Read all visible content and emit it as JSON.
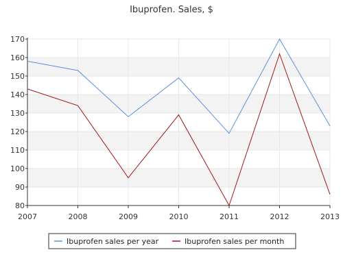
{
  "chart_data": {
    "type": "line",
    "title": "Ibuprofen. Sales, $",
    "x": [
      "2007",
      "2008",
      "2009",
      "2010",
      "2011",
      "2012",
      "2013"
    ],
    "ylim": [
      80,
      170
    ],
    "yticks": [
      80,
      90,
      100,
      110,
      120,
      130,
      140,
      150,
      160,
      170
    ],
    "grid": "horizontal bands",
    "legend_position": "bottom",
    "series": [
      {
        "name": "Ibuprofen sales per year",
        "color": "#5b8fd9",
        "values": [
          158,
          153,
          128,
          149,
          119,
          170,
          123
        ]
      },
      {
        "name": "Ibuprofen sales per month",
        "color": "#a01818",
        "values": [
          143,
          134,
          95,
          129,
          80,
          162,
          86
        ]
      }
    ]
  }
}
